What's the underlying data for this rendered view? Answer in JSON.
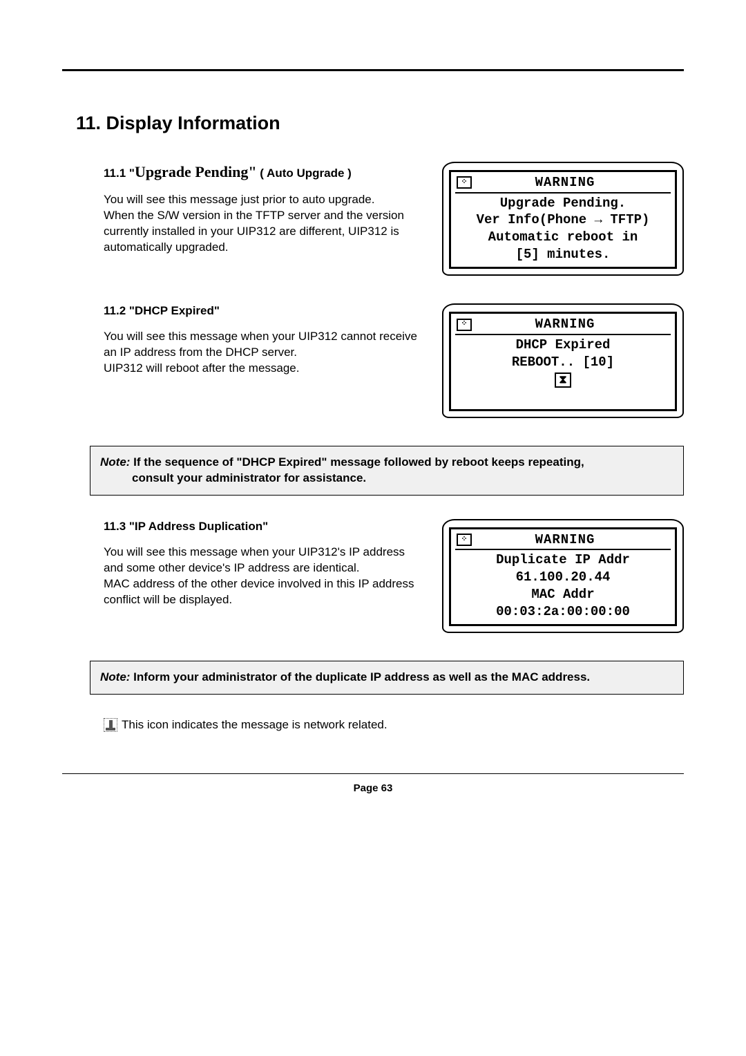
{
  "page": {
    "title": "11. Display Information",
    "footer": "Page 63"
  },
  "s1": {
    "heading_prefix": "11.1 \"",
    "heading_serif": "Upgrade Pending\"",
    "heading_suffix": " ( Auto Upgrade )",
    "p1": "You will see this message just prior to auto upgrade.",
    "p2": "When the S/W version in the TFTP server and the version currently installed in your UIP312 are different, UIP312 is automatically upgraded.",
    "lcd": {
      "title": "WARNING",
      "l1": "Upgrade Pending.",
      "l2": "Ver Info(Phone → TFTP)",
      "l3": "Automatic reboot in",
      "l4": "[5] minutes."
    }
  },
  "s2": {
    "heading": "11.2 \"DHCP Expired\"",
    "p1": "You will see this message when your UIP312 cannot receive an IP address from the DHCP server.",
    "p2": "UIP312 will reboot after the message.",
    "lcd": {
      "title": "WARNING",
      "l1": "DHCP Expired",
      "l2": "REBOOT.. [10]"
    }
  },
  "note1": {
    "label": "Note:",
    "line1": " If the sequence of \"DHCP Expired\" message followed by reboot keeps repeating,",
    "line2": "consult your administrator for assistance."
  },
  "s3": {
    "heading": "11.3 \"IP Address Duplication\"",
    "p1": "You will see this message when your UIP312's IP address and some other device's IP address are identical.",
    "p2": "MAC address of the other device involved in this IP address conflict will be displayed.",
    "lcd": {
      "title": "WARNING",
      "l1": "Duplicate IP Addr",
      "l2": "61.100.20.44",
      "l3": "MAC Addr",
      "l4": "00:03:2a:00:00:00"
    }
  },
  "note2": {
    "label": "Note:",
    "text": " Inform your administrator of the duplicate IP address as well as the MAC address."
  },
  "iconline": {
    "text": " This icon indicates the message is network related."
  }
}
